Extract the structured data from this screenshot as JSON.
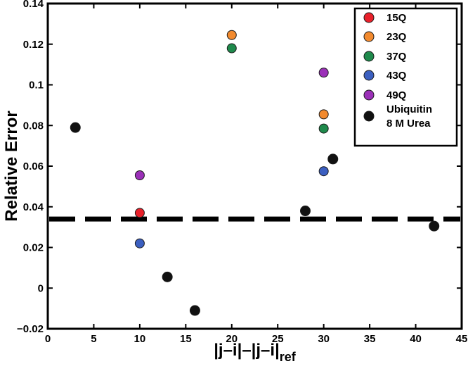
{
  "chart_data": {
    "type": "scatter",
    "xlabel": "|j–i|–|j–i|",
    "xlabel_sub": "ref",
    "ylabel": "Relative Error",
    "xlim": [
      0,
      45
    ],
    "ylim": [
      -0.02,
      0.14
    ],
    "xticks": [
      0,
      5,
      10,
      15,
      20,
      25,
      30,
      35,
      40,
      45
    ],
    "yticks": [
      -0.02,
      0,
      0.02,
      0.04,
      0.06,
      0.08,
      0.1,
      0.12,
      0.14
    ],
    "ytick_labels": [
      "−0.02",
      "0",
      "0.02",
      "0.04",
      "0.06",
      "0.08",
      "0.1",
      "0.12",
      "0.14"
    ],
    "grid": false,
    "legend_position": "top-right",
    "reference_line": {
      "y": 0.034,
      "style": "dashed"
    },
    "series": [
      {
        "name": "15Q",
        "color": "#e8202a",
        "points": [
          [
            10,
            0.037
          ]
        ]
      },
      {
        "name": "23Q",
        "color": "#f28a2e",
        "points": [
          [
            20,
            0.1245
          ],
          [
            30,
            0.0855
          ]
        ]
      },
      {
        "name": "37Q",
        "color": "#1f8a4c",
        "points": [
          [
            20,
            0.118
          ],
          [
            30,
            0.0785
          ]
        ]
      },
      {
        "name": "43Q",
        "color": "#3b5fc0",
        "points": [
          [
            10,
            0.022
          ],
          [
            30,
            0.0575
          ]
        ]
      },
      {
        "name": "49Q",
        "color": "#9b30b8",
        "points": [
          [
            10,
            0.0555
          ],
          [
            30,
            0.106
          ]
        ]
      },
      {
        "name": "Ubiquitin\n8 M Urea",
        "color": "#111111",
        "points": [
          [
            3,
            0.079
          ],
          [
            13,
            0.0055
          ],
          [
            16,
            -0.011
          ],
          [
            28,
            0.038
          ],
          [
            31,
            0.0635
          ],
          [
            42,
            0.0305
          ]
        ]
      }
    ]
  }
}
